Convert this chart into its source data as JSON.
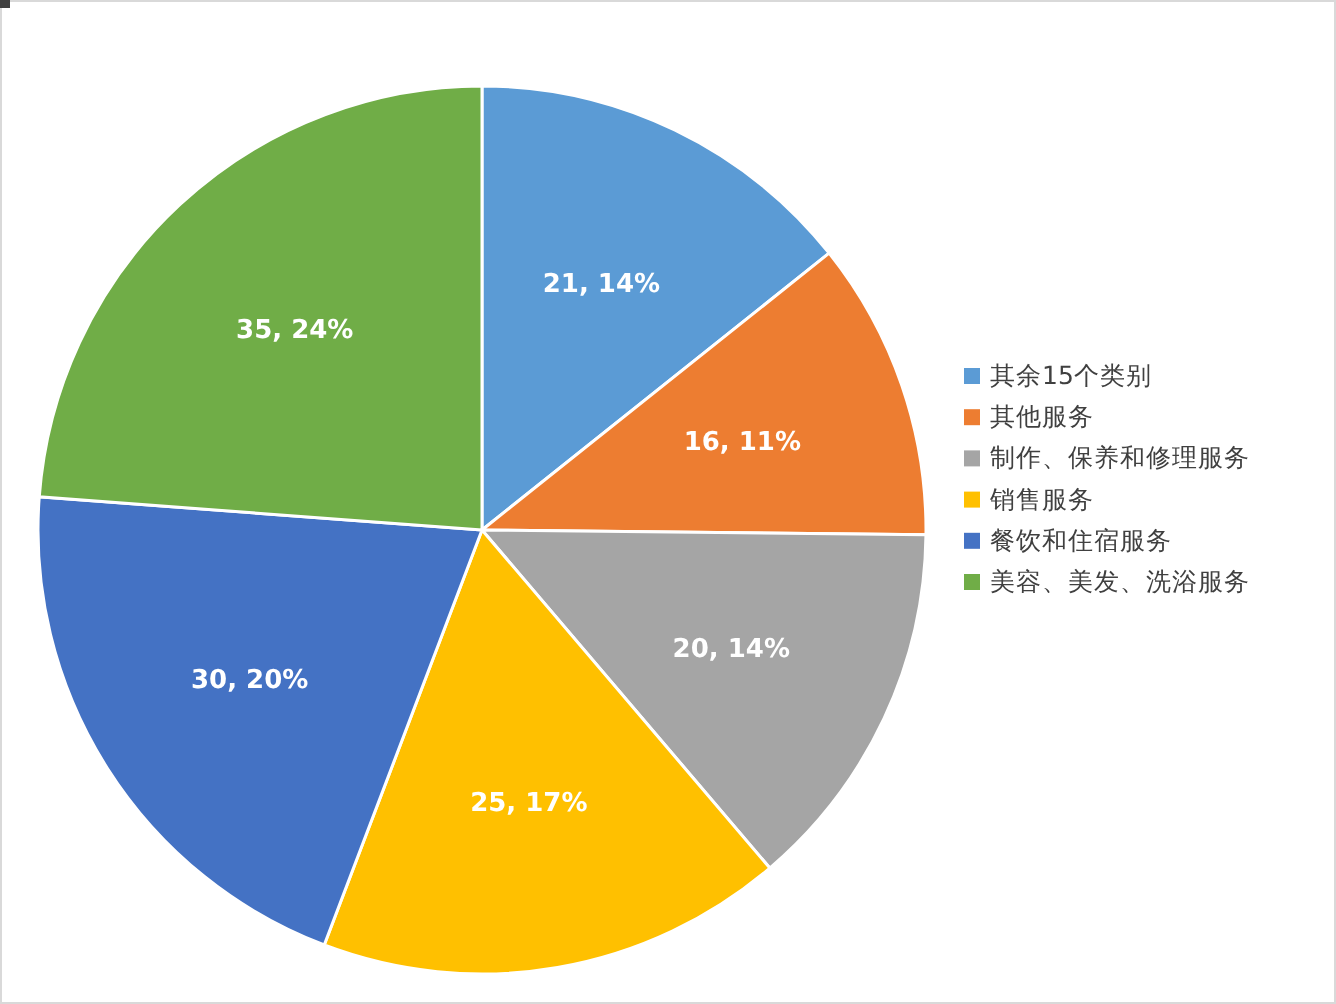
{
  "chart_data": {
    "type": "pie",
    "categories": [
      "其余15个类别",
      "其他服务",
      "制作、保养和修理服务",
      "销售服务",
      "餐饮和住宿服务",
      "美容、美发、洗浴服务"
    ],
    "values": [
      21,
      16,
      20,
      25,
      30,
      35
    ],
    "colors": [
      "#5b9bd5",
      "#ed7d31",
      "#a5a5a5",
      "#ffc000",
      "#4472c4",
      "#70ad47"
    ],
    "value_labels": [
      "21, 14%",
      "16, 11%",
      "20, 14%",
      "25, 17%",
      "30, 20%",
      "35, 24%"
    ],
    "legend": "right"
  }
}
